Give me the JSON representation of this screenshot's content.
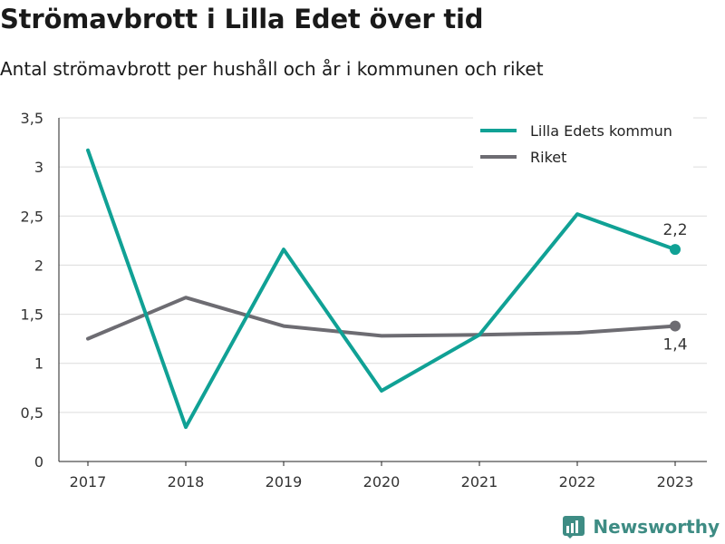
{
  "header": {
    "title": "Strömavbrott i Lilla Edet över tid",
    "subtitle": "Antal strömavbrott per hushåll och år i kommunen och riket"
  },
  "brand": {
    "name": "Newsworthy",
    "icon": "newsworthy-logo-icon",
    "color": "#3e8c84"
  },
  "chart_data": {
    "type": "line",
    "x": [
      2017,
      2018,
      2019,
      2020,
      2021,
      2022,
      2023
    ],
    "ylim": [
      0,
      3.5
    ],
    "yticks": [
      "0",
      "0,5",
      "1",
      "1,5",
      "2",
      "2,5",
      "3",
      "3,5"
    ],
    "grid": true,
    "legend_position": "top-right",
    "series": [
      {
        "name": "Lilla Edets kommun",
        "color": "#10a195",
        "values": [
          3.17,
          0.35,
          2.16,
          0.72,
          1.29,
          2.52,
          2.16
        ],
        "end_label": "2,2"
      },
      {
        "name": "Riket",
        "color": "#6d6c72",
        "values": [
          1.25,
          1.67,
          1.38,
          1.28,
          1.29,
          1.31,
          1.38
        ],
        "end_label": "1,4"
      }
    ]
  }
}
